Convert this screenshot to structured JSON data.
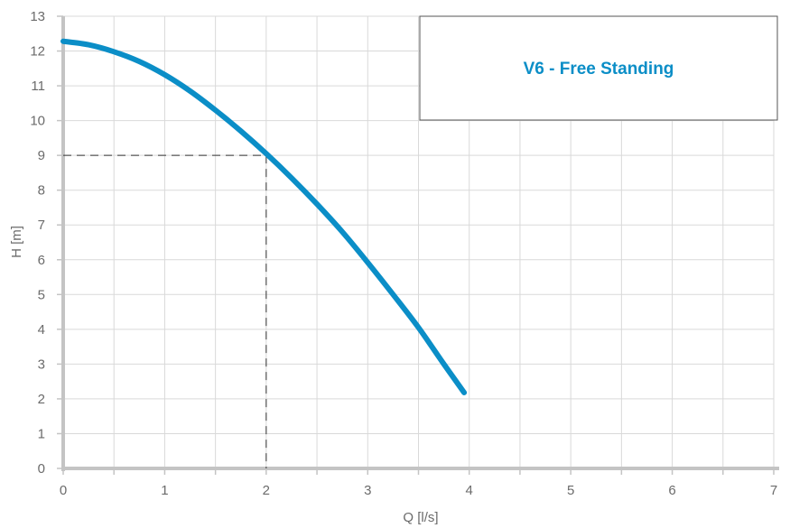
{
  "chart_data": {
    "type": "line",
    "title": "",
    "xlabel": "Q [l/s]",
    "ylabel": "H [m]",
    "xlim": [
      0,
      7
    ],
    "ylim": [
      0,
      13
    ],
    "x_ticks": [
      0,
      1,
      2,
      3,
      4,
      5,
      6,
      7
    ],
    "y_ticks": [
      0,
      1,
      2,
      3,
      4,
      5,
      6,
      7,
      8,
      9,
      10,
      11,
      12,
      13
    ],
    "x_minor_step": 0.5,
    "grid": true,
    "legend_position": "top-right",
    "series": [
      {
        "name": "V6 - Free Standing",
        "color": "#0b8ec7",
        "x": [
          0,
          0.25,
          0.5,
          0.75,
          1.0,
          1.25,
          1.5,
          1.75,
          2.0,
          2.25,
          2.5,
          2.75,
          3.0,
          3.25,
          3.5,
          3.75,
          3.95
        ],
        "y": [
          12.28,
          12.18,
          11.98,
          11.7,
          11.32,
          10.85,
          10.3,
          9.7,
          9.05,
          8.35,
          7.6,
          6.8,
          5.92,
          5.0,
          4.05,
          3.0,
          2.18
        ]
      }
    ],
    "annotations": {
      "operating_point": {
        "x": 2,
        "y": 9,
        "style": "dashed"
      }
    }
  }
}
